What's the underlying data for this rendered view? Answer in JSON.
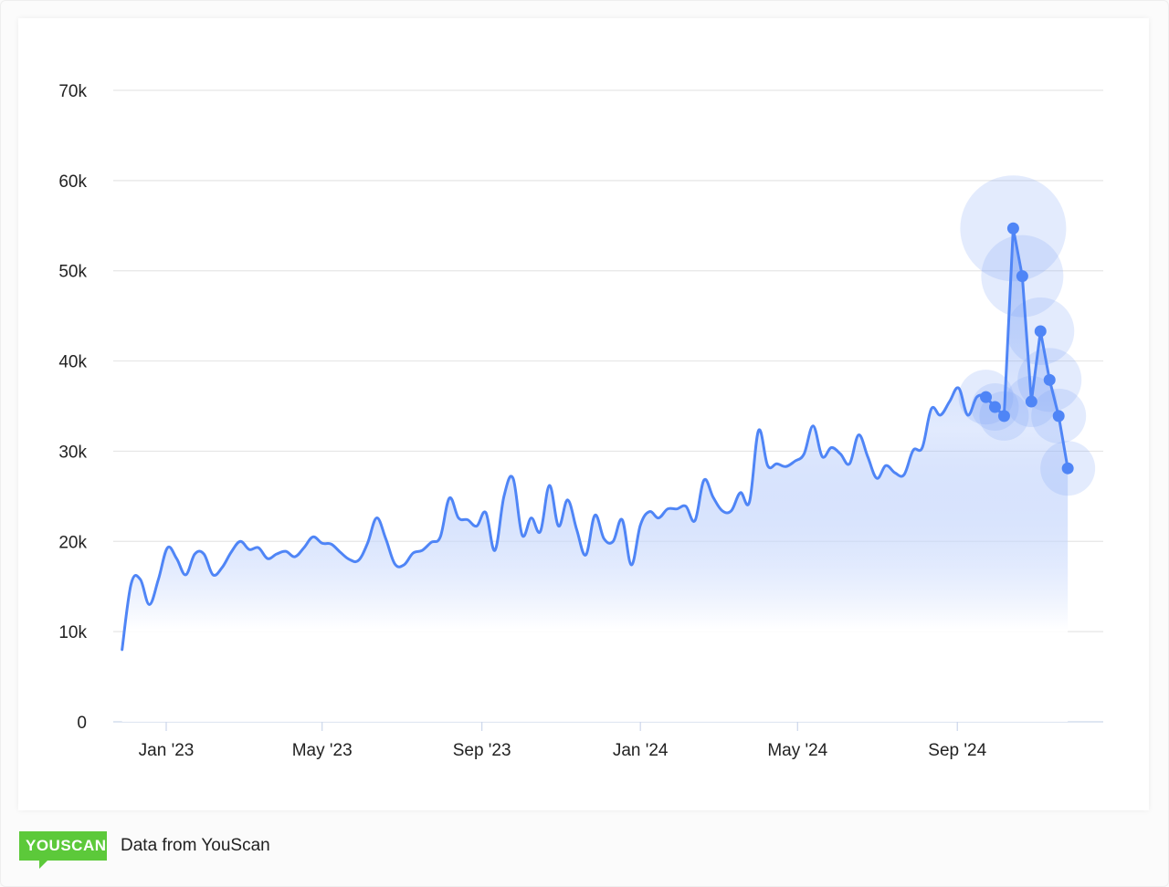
{
  "chart_data": {
    "type": "area",
    "title": "",
    "xlabel": "",
    "ylabel": "",
    "ylim": [
      0,
      70000
    ],
    "y_ticks": [
      "0",
      "10k",
      "20k",
      "30k",
      "40k",
      "50k",
      "60k",
      "70k"
    ],
    "y_tick_values": [
      0,
      10000,
      20000,
      30000,
      40000,
      50000,
      60000,
      70000
    ],
    "x_ticks": [
      "Jan '23",
      "May '23",
      "Sep '23",
      "Jan '24",
      "May '24",
      "Sep '24"
    ],
    "x_tick_dates": [
      "2023-01-01",
      "2023-05-01",
      "2023-09-01",
      "2024-01-01",
      "2024-05-01",
      "2024-09-01"
    ],
    "grid": true,
    "line_color": "#4f85f6",
    "highlighted_from_index": 95,
    "x": [
      "2022-11-28",
      "2022-12-05",
      "2022-12-12",
      "2022-12-19",
      "2022-12-26",
      "2023-01-02",
      "2023-01-09",
      "2023-01-16",
      "2023-01-23",
      "2023-01-30",
      "2023-02-06",
      "2023-02-13",
      "2023-02-20",
      "2023-02-27",
      "2023-03-06",
      "2023-03-13",
      "2023-03-20",
      "2023-03-27",
      "2023-04-03",
      "2023-04-10",
      "2023-04-17",
      "2023-04-24",
      "2023-05-01",
      "2023-05-08",
      "2023-05-15",
      "2023-05-22",
      "2023-05-29",
      "2023-06-05",
      "2023-06-12",
      "2023-06-19",
      "2023-06-26",
      "2023-07-03",
      "2023-07-10",
      "2023-07-17",
      "2023-07-24",
      "2023-07-31",
      "2023-08-07",
      "2023-08-14",
      "2023-08-21",
      "2023-08-28",
      "2023-09-04",
      "2023-09-11",
      "2023-09-18",
      "2023-09-25",
      "2023-10-02",
      "2023-10-09",
      "2023-10-16",
      "2023-10-23",
      "2023-10-30",
      "2023-11-06",
      "2023-11-13",
      "2023-11-20",
      "2023-11-27",
      "2023-12-04",
      "2023-12-11",
      "2023-12-18",
      "2023-12-25",
      "2024-01-01",
      "2024-01-08",
      "2024-01-15",
      "2024-01-22",
      "2024-01-29",
      "2024-02-05",
      "2024-02-12",
      "2024-02-19",
      "2024-02-26",
      "2024-03-04",
      "2024-03-11",
      "2024-03-18",
      "2024-03-25",
      "2024-04-01",
      "2024-04-08",
      "2024-04-15",
      "2024-04-22",
      "2024-04-29",
      "2024-05-06",
      "2024-05-13",
      "2024-05-20",
      "2024-05-27",
      "2024-06-03",
      "2024-06-10",
      "2024-06-17",
      "2024-06-24",
      "2024-07-01",
      "2024-07-08",
      "2024-07-15",
      "2024-07-22",
      "2024-07-29",
      "2024-08-05",
      "2024-08-12",
      "2024-08-19",
      "2024-08-26",
      "2024-09-02",
      "2024-09-09",
      "2024-09-16",
      "2024-09-23",
      "2024-09-30",
      "2024-10-07",
      "2024-10-14",
      "2024-10-21",
      "2024-10-28",
      "2024-11-04",
      "2024-11-11",
      "2024-11-18",
      "2024-11-25"
    ],
    "values": [
      8000,
      15300,
      15800,
      13000,
      15800,
      19300,
      18100,
      16300,
      18600,
      18600,
      16300,
      17100,
      18800,
      20000,
      19100,
      19300,
      18100,
      18600,
      18900,
      18300,
      19300,
      20500,
      19800,
      19700,
      18800,
      18000,
      17900,
      19800,
      22600,
      20300,
      17500,
      17400,
      18700,
      19000,
      19900,
      20500,
      24800,
      22600,
      22400,
      21700,
      23200,
      19000,
      25000,
      27000,
      20700,
      22600,
      21100,
      26200,
      21700,
      24600,
      21300,
      18500,
      22900,
      20300,
      20000,
      22400,
      17400,
      21800,
      23300,
      22600,
      23600,
      23600,
      23900,
      22300,
      26800,
      24900,
      23400,
      23400,
      25400,
      24400,
      32300,
      28400,
      28600,
      28300,
      28900,
      29700,
      32800,
      29400,
      30400,
      29700,
      28600,
      31800,
      29400,
      27000,
      28400,
      27600,
      27400,
      30100,
      30400,
      34700,
      34000,
      35500,
      37000,
      34000,
      36000,
      36000,
      34900,
      33900,
      54700,
      49400,
      35500,
      43300,
      37900,
      33900,
      28100
    ]
  },
  "footer": {
    "logo_text": "YOUSCAN",
    "source_text": "Data from YouScan",
    "logo_color": "#5cc93a"
  }
}
